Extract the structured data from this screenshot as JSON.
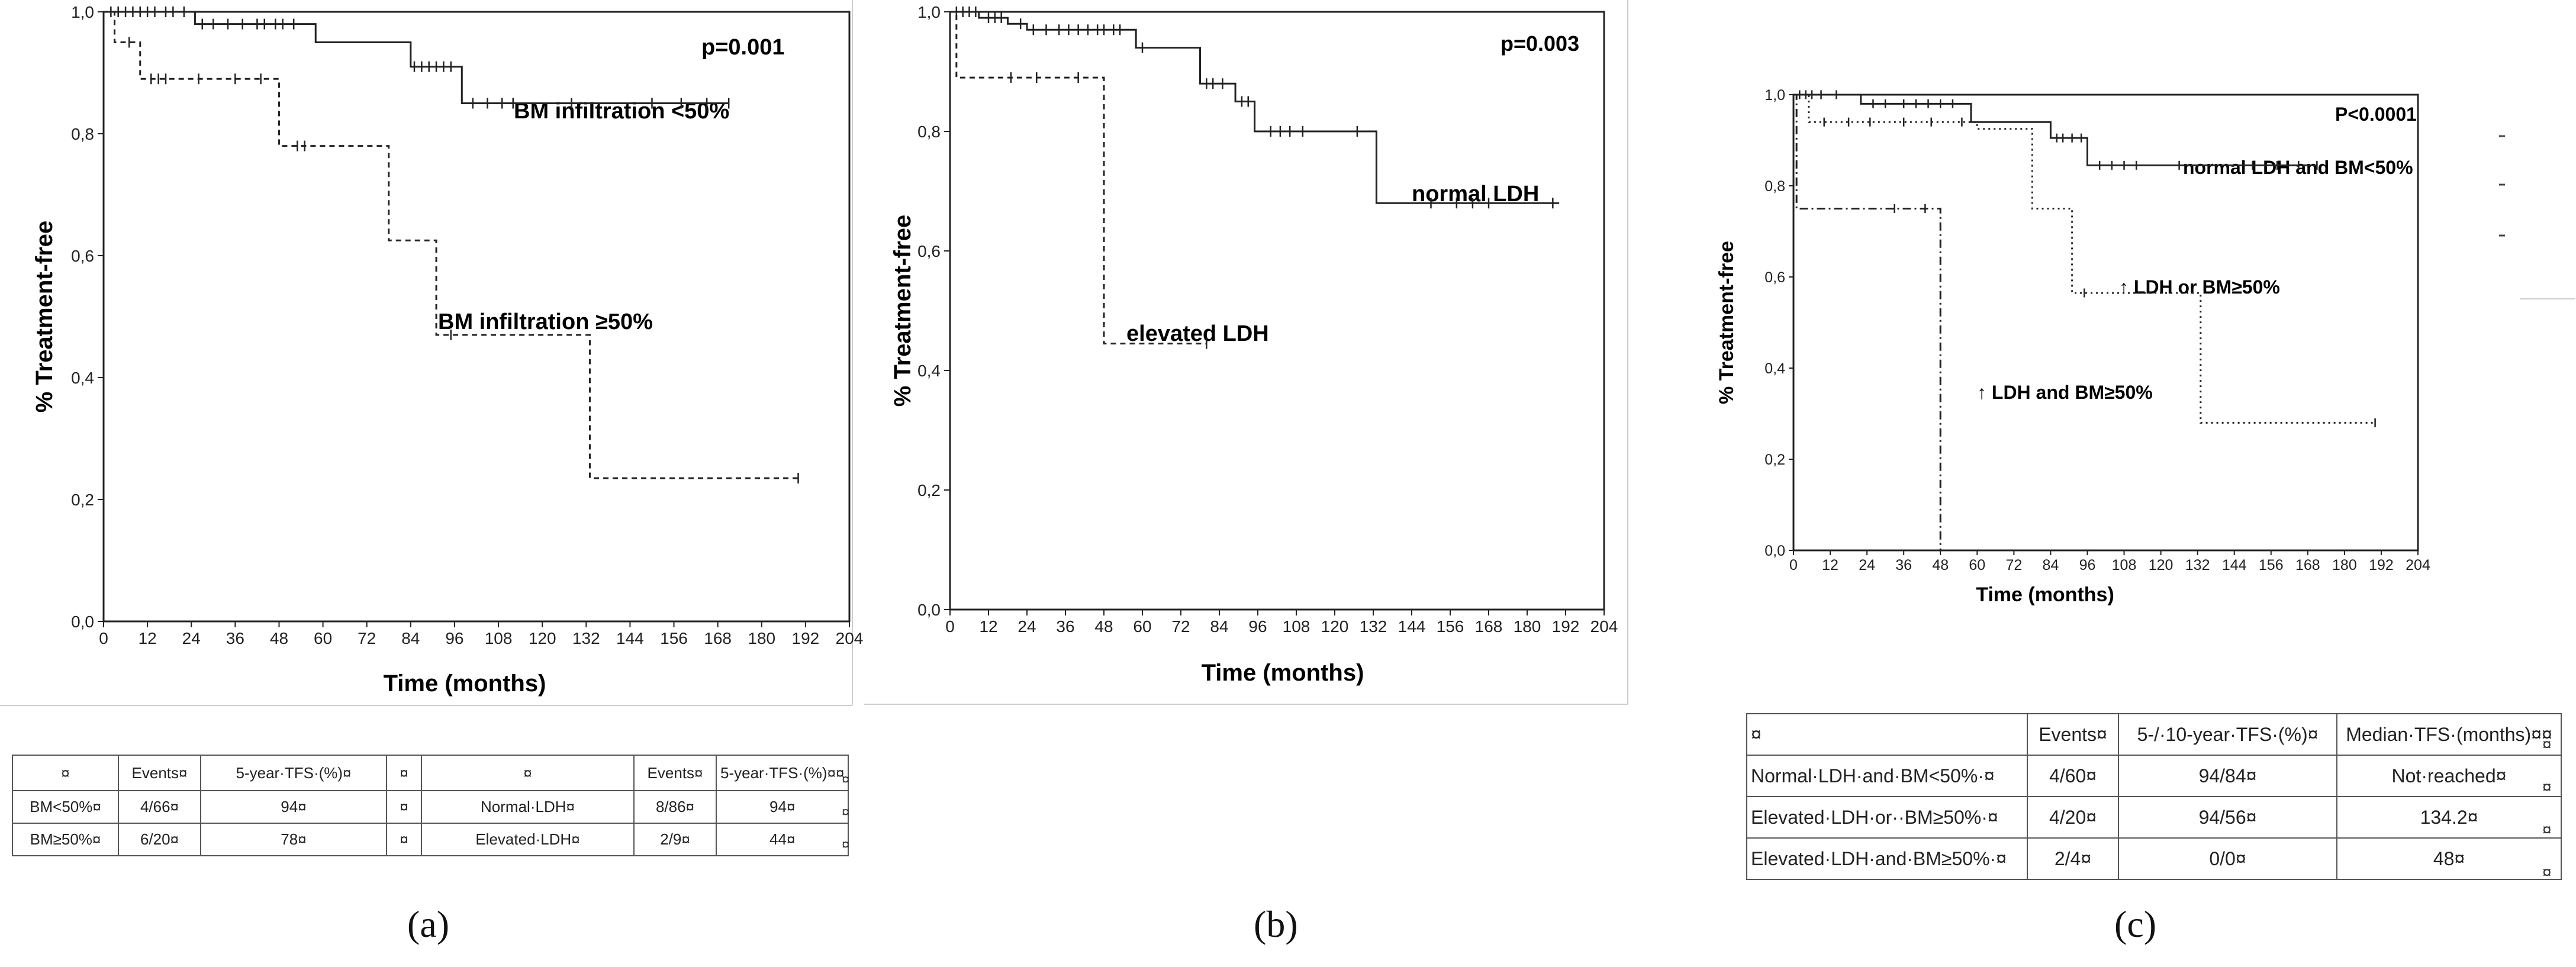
{
  "panels": [
    {
      "id": "a",
      "caption": "(a)",
      "chart_data": {
        "type": "line",
        "subtype": "kaplan-meier-step",
        "pvalue": "p=0.001",
        "xlabel": "Time (months)",
        "ylabel": "% Treatment-free",
        "xlim": [
          0,
          204
        ],
        "ylim": [
          0,
          1
        ],
        "xticks": [
          "0",
          "12",
          "24",
          "36",
          "48",
          "60",
          "72",
          "84",
          "96",
          "108",
          "120",
          "132",
          "144",
          "156",
          "168",
          "180",
          "192",
          "204"
        ],
        "yticks": [
          "0,0",
          "0,2",
          "0,4",
          "0,6",
          "0,8",
          "1,0"
        ],
        "series": [
          {
            "name": "BM infiltration <50%",
            "style": "solid",
            "steps": [
              [
                0,
                1.0
              ],
              [
                25,
                0.98
              ],
              [
                58,
                0.95
              ],
              [
                84,
                0.91
              ],
              [
                98,
                0.85
              ],
              [
                171,
                0.85
              ]
            ],
            "censored": [
              [
                2,
                1
              ],
              [
                4,
                1
              ],
              [
                6,
                1
              ],
              [
                8,
                1
              ],
              [
                10,
                1
              ],
              [
                12,
                1
              ],
              [
                14,
                1
              ],
              [
                17,
                1
              ],
              [
                19,
                1
              ],
              [
                22,
                1
              ],
              [
                27,
                0.98
              ],
              [
                30,
                0.98
              ],
              [
                34,
                0.98
              ],
              [
                38,
                0.98
              ],
              [
                42,
                0.98
              ],
              [
                44,
                0.98
              ],
              [
                47,
                0.98
              ],
              [
                49,
                0.98
              ],
              [
                52,
                0.98
              ],
              [
                85,
                0.91
              ],
              [
                87,
                0.91
              ],
              [
                89,
                0.91
              ],
              [
                91,
                0.91
              ],
              [
                93,
                0.91
              ],
              [
                95,
                0.91
              ],
              [
                101,
                0.85
              ],
              [
                105,
                0.85
              ],
              [
                109,
                0.85
              ],
              [
                112,
                0.85
              ],
              [
                128,
                0.85
              ],
              [
                150,
                0.85
              ],
              [
                158,
                0.85
              ],
              [
                165,
                0.85
              ],
              [
                171,
                0.85
              ]
            ]
          },
          {
            "name": "BM infiltration ≥50%",
            "style": "dashed",
            "steps": [
              [
                0,
                1.0
              ],
              [
                3,
                0.95
              ],
              [
                10,
                0.89
              ],
              [
                48,
                0.78
              ],
              [
                78,
                0.625
              ],
              [
                91,
                0.47
              ],
              [
                133,
                0.235
              ],
              [
                190,
                0.235
              ]
            ],
            "censored": [
              [
                7,
                0.95
              ],
              [
                13,
                0.89
              ],
              [
                15,
                0.89
              ],
              [
                17,
                0.89
              ],
              [
                26,
                0.89
              ],
              [
                36,
                0.89
              ],
              [
                43,
                0.89
              ],
              [
                53,
                0.78
              ],
              [
                55,
                0.78
              ],
              [
                95,
                0.47
              ],
              [
                190,
                0.235
              ]
            ]
          }
        ]
      },
      "table": {
        "header": [
          "¤",
          "Events¤",
          "5-year·TFS·(%)¤",
          "¤",
          "¤",
          "Events¤",
          "5-year·TFS·(%)¤¤"
        ],
        "rows": [
          [
            "BM<50%¤",
            "4/66¤",
            "94¤",
            "¤",
            "Normal·LDH¤",
            "8/86¤",
            "94¤"
          ],
          [
            "BM≥50%¤",
            "6/20¤",
            "78¤",
            "¤",
            "Elevated·LDH¤",
            "2/9¤",
            "44¤"
          ]
        ],
        "trail": [
          "¤",
          "¤",
          "¤"
        ]
      }
    },
    {
      "id": "b",
      "caption": "(b)",
      "chart_data": {
        "type": "line",
        "subtype": "kaplan-meier-step",
        "pvalue": "p=0.003",
        "xlabel": "Time (months)",
        "ylabel": "% Treatment-free",
        "xlim": [
          0,
          204
        ],
        "ylim": [
          0,
          1
        ],
        "xticks": [
          "0",
          "12",
          "24",
          "36",
          "48",
          "60",
          "72",
          "84",
          "96",
          "108",
          "120",
          "132",
          "144",
          "156",
          "168",
          "180",
          "192",
          "204"
        ],
        "yticks": [
          "0,0",
          "0,2",
          "0,4",
          "0,6",
          "0,8",
          "1,0"
        ],
        "series": [
          {
            "name": "normal LDH",
            "style": "solid",
            "steps": [
              [
                0,
                1.0
              ],
              [
                9,
                0.99
              ],
              [
                18,
                0.98
              ],
              [
                24,
                0.97
              ],
              [
                58,
                0.94
              ],
              [
                78,
                0.88
              ],
              [
                89,
                0.85
              ],
              [
                95,
                0.8
              ],
              [
                133,
                0.68
              ],
              [
                190,
                0.68
              ]
            ],
            "censored": [
              [
                2,
                1
              ],
              [
                4,
                1
              ],
              [
                6,
                1
              ],
              [
                8,
                1
              ],
              [
                12,
                0.99
              ],
              [
                14,
                0.99
              ],
              [
                16,
                0.99
              ],
              [
                22,
                0.98
              ],
              [
                26,
                0.97
              ],
              [
                30,
                0.97
              ],
              [
                34,
                0.97
              ],
              [
                37,
                0.97
              ],
              [
                40,
                0.97
              ],
              [
                43,
                0.97
              ],
              [
                46,
                0.97
              ],
              [
                48,
                0.97
              ],
              [
                51,
                0.97
              ],
              [
                53,
                0.97
              ],
              [
                60,
                0.94
              ],
              [
                80,
                0.88
              ],
              [
                82,
                0.88
              ],
              [
                85,
                0.88
              ],
              [
                91,
                0.85
              ],
              [
                93,
                0.85
              ],
              [
                100,
                0.8
              ],
              [
                103,
                0.8
              ],
              [
                106,
                0.8
              ],
              [
                110,
                0.8
              ],
              [
                127,
                0.8
              ],
              [
                150,
                0.68
              ],
              [
                158,
                0.68
              ],
              [
                163,
                0.68
              ],
              [
                168,
                0.68
              ],
              [
                188,
                0.68
              ]
            ]
          },
          {
            "name": "elevated LDH",
            "style": "dashed",
            "steps": [
              [
                0,
                1.0
              ],
              [
                2,
                0.89
              ],
              [
                48,
                0.445
              ],
              [
                80,
                0.445
              ]
            ],
            "censored": [
              [
                19,
                0.89
              ],
              [
                27,
                0.89
              ],
              [
                40,
                0.89
              ],
              [
                80,
                0.445
              ]
            ]
          }
        ]
      }
    },
    {
      "id": "c",
      "caption": "(c)",
      "chart_data": {
        "type": "line",
        "subtype": "kaplan-meier-step",
        "pvalue": "P<0.0001",
        "xlabel": "Time (months)",
        "ylabel": "% Treatment-free",
        "xlim": [
          0,
          204
        ],
        "ylim": [
          0,
          1
        ],
        "xticks": [
          "0",
          "12",
          "24",
          "36",
          "48",
          "60",
          "72",
          "84",
          "96",
          "108",
          "120",
          "132",
          "144",
          "156",
          "168",
          "180",
          "192",
          "204"
        ],
        "yticks": [
          "0,0",
          "0,2",
          "0,4",
          "0,6",
          "0,8",
          "1,0"
        ],
        "series": [
          {
            "name": "normal LDH and BM<50%",
            "style": "solid",
            "steps": [
              [
                0,
                1.0
              ],
              [
                22,
                0.98
              ],
              [
                58,
                0.94
              ],
              [
                84,
                0.905
              ],
              [
                96,
                0.845
              ],
              [
                171,
                0.845
              ]
            ],
            "censored": [
              [
                2,
                1
              ],
              [
                4,
                1
              ],
              [
                6,
                1
              ],
              [
                9,
                1
              ],
              [
                14,
                1
              ],
              [
                26,
                0.98
              ],
              [
                30,
                0.98
              ],
              [
                36,
                0.98
              ],
              [
                40,
                0.98
              ],
              [
                44,
                0.98
              ],
              [
                48,
                0.98
              ],
              [
                52,
                0.98
              ],
              [
                86,
                0.905
              ],
              [
                88,
                0.905
              ],
              [
                91,
                0.905
              ],
              [
                94,
                0.905
              ],
              [
                100,
                0.845
              ],
              [
                104,
                0.845
              ],
              [
                108,
                0.845
              ],
              [
                112,
                0.845
              ],
              [
                126,
                0.845
              ],
              [
                150,
                0.845
              ],
              [
                158,
                0.845
              ],
              [
                165,
                0.845
              ],
              [
                171,
                0.845
              ]
            ]
          },
          {
            "name": "↑ LDH or BM≥50%",
            "style": "dotted",
            "steps": [
              [
                0,
                1.0
              ],
              [
                5,
                0.94
              ],
              [
                60,
                0.925
              ],
              [
                78,
                0.75
              ],
              [
                91,
                0.565
              ],
              [
                133,
                0.28
              ],
              [
                190,
                0.28
              ]
            ],
            "censored": [
              [
                10,
                0.94
              ],
              [
                18,
                0.94
              ],
              [
                25,
                0.94
              ],
              [
                36,
                0.94
              ],
              [
                45,
                0.94
              ],
              [
                55,
                0.94
              ],
              [
                95,
                0.565
              ],
              [
                190,
                0.28
              ]
            ]
          },
          {
            "name": "↑ LDH and BM≥50%",
            "style": "dashdot",
            "steps": [
              [
                0,
                1.0
              ],
              [
                1,
                0.75
              ],
              [
                48,
                0.0
              ]
            ],
            "censored": [
              [
                33,
                0.75
              ],
              [
                43,
                0.75
              ]
            ]
          }
        ]
      },
      "table": {
        "header": [
          "¤",
          "Events¤",
          "5-/·10-year·TFS·(%)¤",
          "Median·TFS·(months)¤¤"
        ],
        "rows": [
          [
            "Normal·LDH·and·BM<50%·¤",
            "4/60¤",
            "94/84¤",
            "Not·reached¤"
          ],
          [
            "Elevated·LDH·or··BM≥50%·¤",
            "4/20¤",
            "94/56¤",
            "134.2¤"
          ],
          [
            "Elevated·LDH·and·BM≥50%·¤",
            "2/4¤",
            "0/0¤",
            "48¤"
          ]
        ],
        "trail": [
          "¤",
          "¤",
          "¤",
          "¤"
        ]
      }
    }
  ]
}
